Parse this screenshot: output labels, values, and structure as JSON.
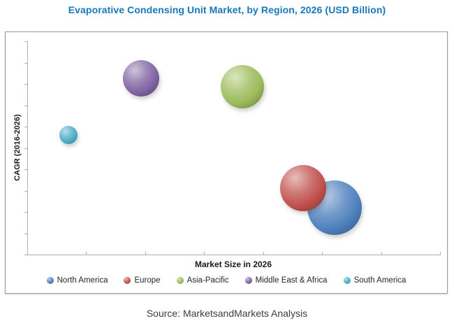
{
  "title": "Evaporative Condensing Unit Market, by Region, 2026 (USD Billion)",
  "title_color": "#1778ba",
  "axes": {
    "x_label": "Market Size in 2026",
    "y_label": "CAGR (2016-2026)"
  },
  "chart_data": {
    "type": "bubble",
    "title": "Evaporative Condensing Unit Market, by Region, 2026 (USD Billion)",
    "xlabel": "Market Size in 2026",
    "ylabel": "CAGR (2016-2026)",
    "tick_labels_visible": false,
    "x_tick_count": 8,
    "y_tick_count": 11,
    "legend_position": "bottom",
    "series": [
      {
        "name": "North America",
        "color": "#4f81bd",
        "x_frac": 0.744,
        "y_frac": 0.22,
        "radius_px": 39
      },
      {
        "name": "Europe",
        "color": "#c0504d",
        "x_frac": 0.668,
        "y_frac": 0.311,
        "radius_px": 33
      },
      {
        "name": "Asia-Pacific",
        "color": "#9bbb59",
        "x_frac": 0.521,
        "y_frac": 0.787,
        "radius_px": 31
      },
      {
        "name": "Middle East & Africa",
        "color": "#8064a2",
        "x_frac": 0.276,
        "y_frac": 0.826,
        "radius_px": 26
      },
      {
        "name": "South America",
        "color": "#4bacc6",
        "x_frac": 0.1,
        "y_frac": 0.561,
        "radius_px": 13
      }
    ]
  },
  "source_line": "Source: MarketsandMarkets Analysis"
}
